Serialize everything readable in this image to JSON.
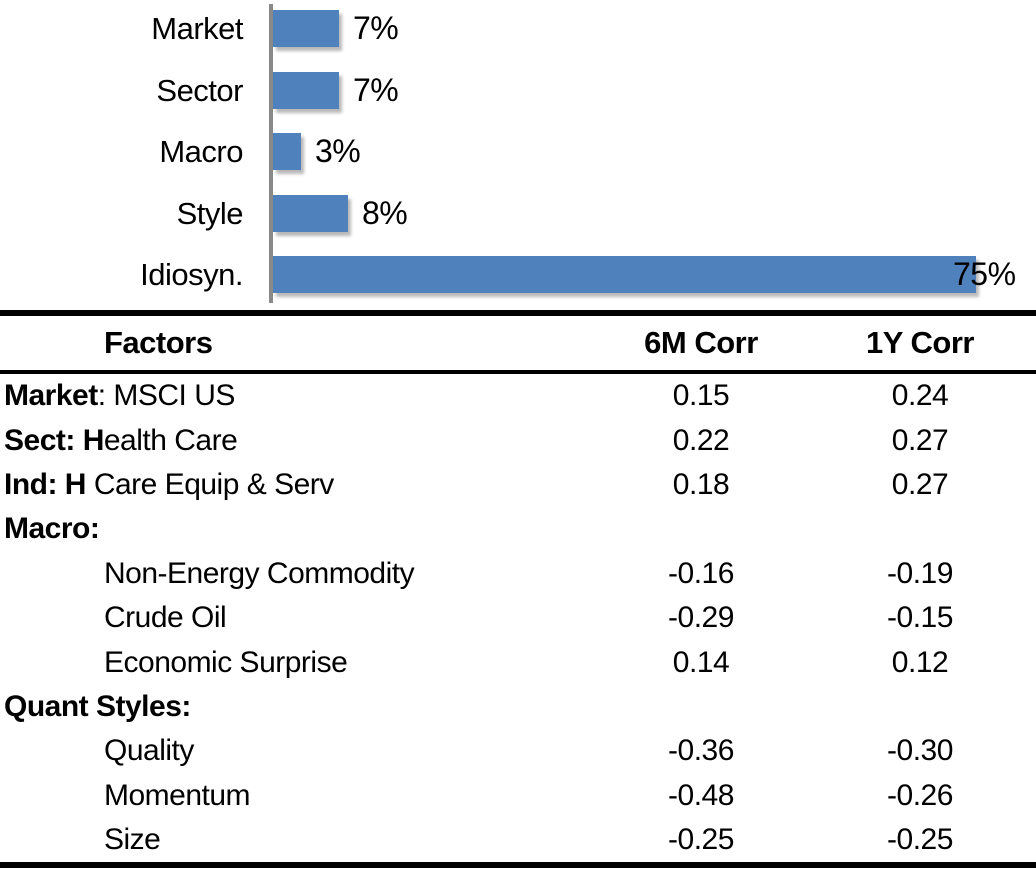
{
  "colors": {
    "bar_blue": "#4F81BD",
    "axis_gray": "#898989",
    "text": "#000000",
    "background": "#ffffff"
  },
  "chart_data": [
    {
      "type": "bar",
      "orientation": "horizontal",
      "title": "",
      "categories": [
        "Market",
        "Sector",
        "Macro",
        "Style",
        "Idiosyn."
      ],
      "values": [
        7,
        7,
        3,
        8,
        75
      ],
      "value_labels": [
        "7%",
        "7%",
        "3%",
        "8%",
        "75%"
      ],
      "unit": "%",
      "xlim": [
        0,
        75
      ],
      "grid": false,
      "legend": false,
      "bar_color": "#4F81BD"
    },
    {
      "type": "table",
      "columns": [
        "Factors",
        "6M Corr",
        "1Y Corr"
      ],
      "rows": [
        {
          "label_bold": "Market",
          "label": ": MSCI US",
          "indent": false,
          "corr_6m": "0.15",
          "corr_1y": "0.24"
        },
        {
          "label_bold": "Sect: H",
          "label": "ealth Care",
          "indent": false,
          "corr_6m": "0.22",
          "corr_1y": "0.27"
        },
        {
          "label_bold": "Ind: H",
          "label": " Care Equip & Serv",
          "indent": false,
          "corr_6m": "0.18",
          "corr_1y": "0.27"
        },
        {
          "label_bold": "Macro:",
          "label": "",
          "indent": false,
          "corr_6m": "",
          "corr_1y": ""
        },
        {
          "label_bold": "",
          "label": "Non-Energy Commodity",
          "indent": true,
          "corr_6m": "-0.16",
          "corr_1y": "-0.19"
        },
        {
          "label_bold": "",
          "label": "Crude Oil",
          "indent": true,
          "corr_6m": "-0.29",
          "corr_1y": "-0.15"
        },
        {
          "label_bold": "",
          "label": "Economic Surprise",
          "indent": true,
          "corr_6m": "0.14",
          "corr_1y": "0.12"
        },
        {
          "label_bold": "Quant Styles:",
          "label": "",
          "indent": false,
          "corr_6m": "",
          "corr_1y": ""
        },
        {
          "label_bold": "",
          "label": "Quality",
          "indent": true,
          "corr_6m": "-0.36",
          "corr_1y": "-0.30"
        },
        {
          "label_bold": "",
          "label": "Momentum",
          "indent": true,
          "corr_6m": "-0.48",
          "corr_1y": "-0.26"
        },
        {
          "label_bold": "",
          "label": "Size",
          "indent": true,
          "corr_6m": "-0.25",
          "corr_1y": "-0.25"
        }
      ]
    }
  ]
}
